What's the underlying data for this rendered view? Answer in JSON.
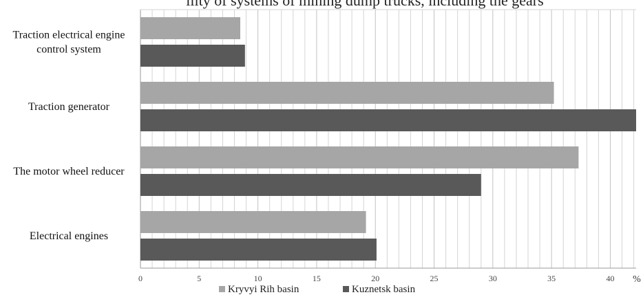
{
  "chart_data": {
    "type": "bar",
    "orientation": "horizontal",
    "title": "ility of systems of mining dump trucks, including the gears",
    "categories": [
      "Traction electrical engine control system",
      "Traction generator",
      "The motor wheel reducer",
      "Electrical engines"
    ],
    "category_lines": [
      [
        "Traction electrical engine",
        "control system"
      ],
      [
        "Traction generator"
      ],
      [
        "The motor wheel reducer"
      ],
      [
        "Electrical engines"
      ]
    ],
    "series": [
      {
        "name": "Kryvyi Rih  basin",
        "color": "#a6a6a6",
        "values": [
          8.5,
          35.2,
          37.3,
          19.2
        ]
      },
      {
        "name": "Kuznetsk basin",
        "color": "#595959",
        "values": [
          8.9,
          42.2,
          29.0,
          20.1
        ]
      }
    ],
    "xlim": [
      0,
      42.2
    ],
    "xticks": [
      0,
      5,
      10,
      15,
      20,
      25,
      30,
      35,
      40
    ],
    "xunit": "%",
    "grid": true,
    "minor_grid_step": 1,
    "legend_position": "bottom"
  },
  "colors": {
    "grid": "#d4d4d4",
    "grid_major": "#c2c2c2",
    "axis": "#9a9a9a",
    "background": "#ffffff"
  }
}
